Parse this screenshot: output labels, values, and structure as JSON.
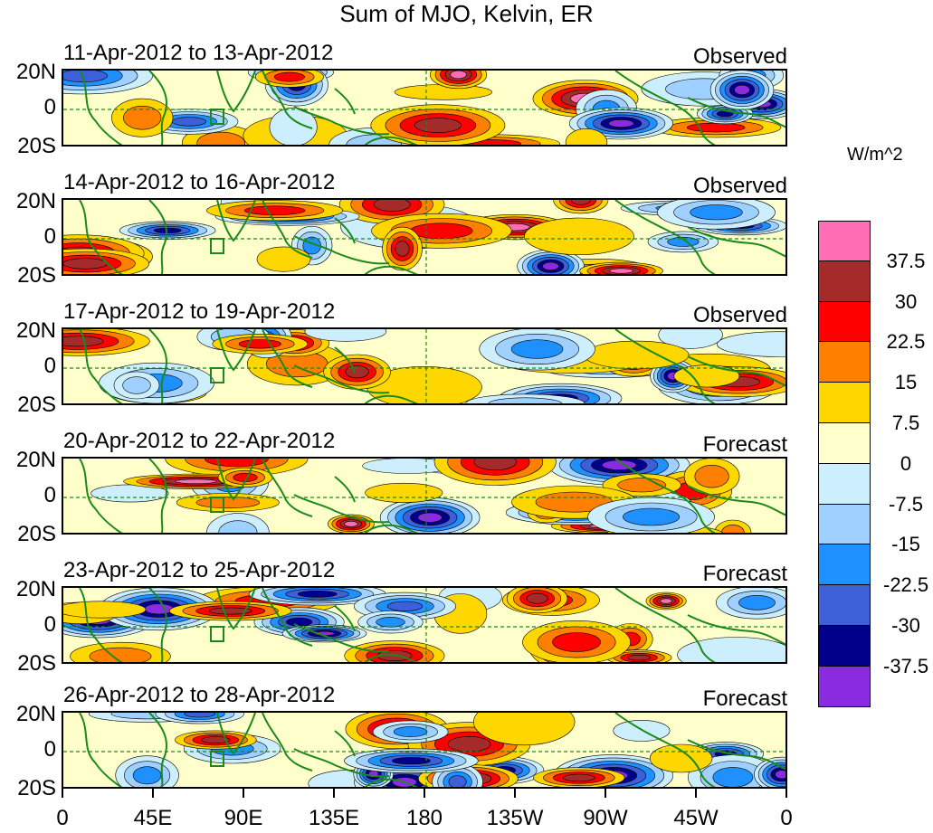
{
  "title": "Sum of MJO, Kelvin, ER",
  "panels": [
    {
      "date_range": "11-Apr-2012 to 13-Apr-2012",
      "tag": "Observed"
    },
    {
      "date_range": "14-Apr-2012 to 16-Apr-2012",
      "tag": "Observed"
    },
    {
      "date_range": "17-Apr-2012 to 19-Apr-2012",
      "tag": "Observed"
    },
    {
      "date_range": "20-Apr-2012 to 22-Apr-2012",
      "tag": "Forecast"
    },
    {
      "date_range": "23-Apr-2012 to 25-Apr-2012",
      "tag": "Forecast"
    },
    {
      "date_range": "26-Apr-2012 to 28-Apr-2012",
      "tag": "Forecast"
    }
  ],
  "lat_labels": [
    "20N",
    "0",
    "20S"
  ],
  "lon_labels": [
    "0",
    "45E",
    "90E",
    "135E",
    "180",
    "135W",
    "90W",
    "45W",
    "0"
  ],
  "colorbar": {
    "units": "W/m^2",
    "labels": [
      "37.5",
      "30",
      "22.5",
      "15",
      "7.5",
      "0",
      "-7.5",
      "-15",
      "-22.5",
      "-30",
      "-37.5"
    ],
    "colors": [
      "#ff6eb4",
      "#a52a2a",
      "#ff0000",
      "#ff7f00",
      "#ffd700",
      "#ffffcc",
      "#cdeffd",
      "#a0d0ff",
      "#1e90ff",
      "#3d5fd8",
      "#00008b",
      "#8a2be2"
    ]
  },
  "map_colors": {
    "coast": "#1a8a1a",
    "equator": "#1a8a1a"
  }
}
